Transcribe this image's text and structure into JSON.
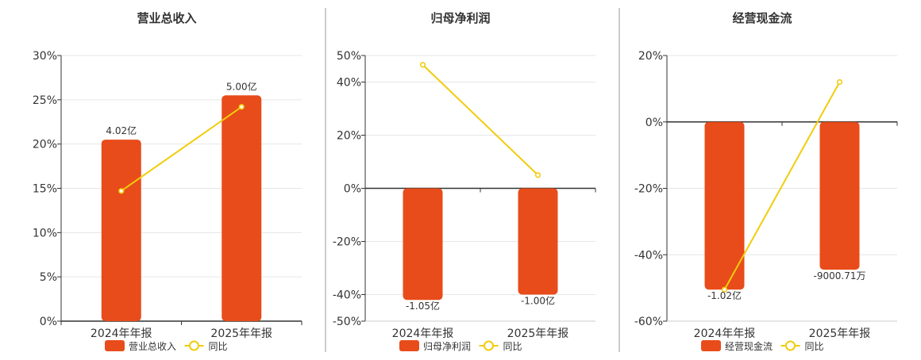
{
  "colors": {
    "bar": "#e84c1a",
    "line": "#f2cc0c",
    "grid": "#e6e6e6",
    "axis": "#333333",
    "divider": "#999999",
    "text": "#333333"
  },
  "chart_data": [
    {
      "type": "bar",
      "title": "营业总收入",
      "categories": [
        "2024年年报",
        "2025年年报"
      ],
      "ylim": [
        0,
        30
      ],
      "yticks": [
        "30%",
        "25%",
        "20%",
        "15%",
        "10%",
        "5%",
        "0%"
      ],
      "ytick_values": [
        30,
        25,
        20,
        15,
        10,
        5,
        0
      ],
      "series": [
        {
          "name": "营业总收入",
          "kind": "bar",
          "values": [
            20.5,
            25.5
          ],
          "labels": [
            "4.02亿",
            "5.00亿"
          ]
        },
        {
          "name": "同比",
          "kind": "line",
          "values": [
            14.7,
            24.2
          ]
        }
      ],
      "legend": "bottom",
      "grid": true
    },
    {
      "type": "bar",
      "title": "归母净利润",
      "categories": [
        "2024年年报",
        "2025年年报"
      ],
      "ylim": [
        -50,
        50
      ],
      "yticks": [
        "50%",
        "40%",
        "20%",
        "0%",
        "-20%",
        "-40%",
        "-50%"
      ],
      "ytick_values": [
        50,
        40,
        20,
        0,
        -20,
        -40,
        -50
      ],
      "series": [
        {
          "name": "归母净利润",
          "kind": "bar",
          "values": [
            -42,
            -40
          ],
          "labels": [
            "-1.05亿",
            "-1.00亿"
          ]
        },
        {
          "name": "同比",
          "kind": "line",
          "values": [
            46.5,
            5
          ]
        }
      ],
      "legend": "bottom",
      "grid": true
    },
    {
      "type": "bar",
      "title": "经营现金流",
      "categories": [
        "2024年年报",
        "2025年年报"
      ],
      "ylim": [
        -60,
        20
      ],
      "yticks": [
        "20%",
        "0%",
        "-20%",
        "-40%",
        "-60%"
      ],
      "ytick_values": [
        20,
        0,
        -20,
        -40,
        -60
      ],
      "series": [
        {
          "name": "经营现金流",
          "kind": "bar",
          "values": [
            -50.5,
            -44.5
          ],
          "labels": [
            "-1.02亿",
            "-9000.71万"
          ]
        },
        {
          "name": "同比",
          "kind": "line",
          "values": [
            -50.5,
            12
          ]
        }
      ],
      "legend": "bottom",
      "grid": true
    }
  ]
}
